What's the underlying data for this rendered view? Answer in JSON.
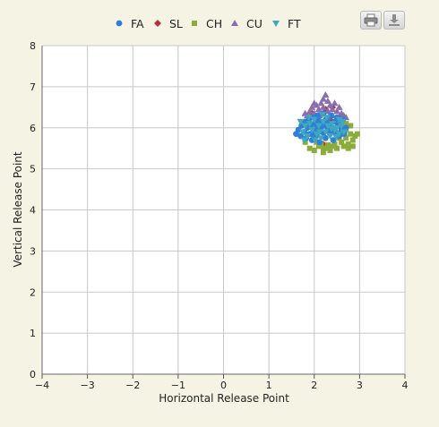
{
  "toolbar": {
    "print_icon": "print-icon",
    "export_icon": "download-icon"
  },
  "chart_data": {
    "type": "scatter",
    "xlabel": "Horizontal Release Point",
    "ylabel": "Vertical Release Point",
    "xlim": [
      -4,
      4
    ],
    "ylim": [
      0,
      8
    ],
    "xticks": [
      -4,
      -3,
      -2,
      -1,
      0,
      1,
      2,
      3,
      4
    ],
    "yticks": [
      0,
      1,
      2,
      3,
      4,
      5,
      6,
      7,
      8
    ],
    "xtick_labels": [
      "−4",
      "−3",
      "−2",
      "−1",
      "0",
      "1",
      "2",
      "3",
      "4"
    ],
    "ytick_labels": [
      "0",
      "1",
      "2",
      "3",
      "4",
      "5",
      "6",
      "7",
      "8"
    ],
    "grid": true,
    "legend_position": "top-center",
    "series": [
      {
        "name": "FA",
        "marker": "circle",
        "color": "#2f7ed8",
        "points": [
          [
            1.6,
            5.85
          ],
          [
            1.65,
            5.95
          ],
          [
            1.7,
            5.8
          ],
          [
            1.72,
            6.05
          ],
          [
            1.78,
            5.9
          ],
          [
            1.8,
            6.15
          ],
          [
            1.82,
            5.75
          ],
          [
            1.85,
            6.0
          ],
          [
            1.88,
            6.2
          ],
          [
            1.9,
            5.85
          ],
          [
            1.92,
            6.05
          ],
          [
            1.95,
            5.7
          ],
          [
            1.97,
            6.25
          ],
          [
            2.0,
            5.95
          ],
          [
            2.02,
            6.1
          ],
          [
            2.05,
            5.8
          ],
          [
            2.07,
            6.3
          ],
          [
            2.1,
            6.0
          ],
          [
            2.12,
            5.65
          ],
          [
            2.15,
            6.15
          ],
          [
            2.17,
            5.9
          ],
          [
            2.2,
            6.35
          ],
          [
            2.22,
            6.05
          ],
          [
            2.25,
            5.75
          ],
          [
            2.27,
            6.2
          ],
          [
            2.3,
            5.95
          ],
          [
            2.32,
            6.1
          ],
          [
            2.35,
            5.85
          ],
          [
            2.37,
            6.3
          ],
          [
            2.4,
            6.0
          ],
          [
            2.42,
            5.7
          ],
          [
            2.45,
            6.15
          ],
          [
            2.47,
            5.9
          ],
          [
            2.5,
            6.25
          ],
          [
            2.52,
            6.05
          ],
          [
            2.55,
            5.8
          ],
          [
            2.58,
            6.1
          ],
          [
            2.6,
            5.95
          ],
          [
            2.63,
            6.2
          ],
          [
            2.66,
            5.85
          ],
          [
            2.7,
            6.0
          ],
          [
            2.05,
            5.98
          ],
          [
            2.15,
            6.02
          ],
          [
            2.25,
            6.08
          ],
          [
            2.35,
            5.92
          ],
          [
            2.1,
            6.18
          ],
          [
            2.2,
            5.88
          ],
          [
            2.3,
            6.22
          ],
          [
            1.98,
            5.82
          ],
          [
            2.45,
            5.98
          ]
        ]
      },
      {
        "name": "SL",
        "marker": "diamond",
        "color": "#b5313a",
        "points": [
          [
            2.1,
            6.3
          ],
          [
            2.25,
            6.45
          ],
          [
            2.35,
            6.2
          ],
          [
            1.95,
            6.35
          ],
          [
            2.4,
            6.5
          ],
          [
            2.2,
            5.6
          ],
          [
            1.85,
            6.1
          ],
          [
            2.55,
            6.25
          ]
        ]
      },
      {
        "name": "CH",
        "marker": "square",
        "color": "#8bac3c",
        "points": [
          [
            1.9,
            5.5
          ],
          [
            2.0,
            5.45
          ],
          [
            2.1,
            5.55
          ],
          [
            2.2,
            5.4
          ],
          [
            2.25,
            5.5
          ],
          [
            2.35,
            5.45
          ],
          [
            2.45,
            5.6
          ],
          [
            2.5,
            5.5
          ],
          [
            2.6,
            5.65
          ],
          [
            2.65,
            5.55
          ],
          [
            2.7,
            5.75
          ],
          [
            2.75,
            5.6
          ],
          [
            2.8,
            5.85
          ],
          [
            2.85,
            5.7
          ],
          [
            2.9,
            5.8
          ],
          [
            2.95,
            5.85
          ],
          [
            2.75,
            5.5
          ],
          [
            2.85,
            5.55
          ],
          [
            2.7,
            5.95
          ],
          [
            2.8,
            6.05
          ],
          [
            2.6,
            5.85
          ],
          [
            2.55,
            5.75
          ],
          [
            2.15,
            5.6
          ],
          [
            2.05,
            5.65
          ],
          [
            2.4,
            5.55
          ],
          [
            2.65,
            6.0
          ],
          [
            1.8,
            5.65
          ],
          [
            2.3,
            5.58
          ],
          [
            2.7,
            6.1
          ],
          [
            2.2,
            5.5
          ]
        ]
      },
      {
        "name": "CU",
        "marker": "triangle",
        "color": "#8a6dae",
        "points": [
          [
            1.85,
            6.3
          ],
          [
            1.9,
            6.4
          ],
          [
            1.95,
            6.5
          ],
          [
            2.0,
            6.35
          ],
          [
            2.05,
            6.55
          ],
          [
            2.1,
            6.45
          ],
          [
            2.15,
            6.6
          ],
          [
            2.2,
            6.7
          ],
          [
            2.25,
            6.8
          ],
          [
            2.3,
            6.65
          ],
          [
            2.35,
            6.55
          ],
          [
            2.4,
            6.45
          ],
          [
            2.45,
            6.6
          ],
          [
            2.5,
            6.4
          ],
          [
            2.55,
            6.5
          ],
          [
            2.6,
            6.35
          ],
          [
            2.65,
            6.3
          ],
          [
            2.2,
            6.5
          ],
          [
            2.3,
            6.4
          ],
          [
            2.1,
            6.3
          ],
          [
            2.4,
            6.3
          ],
          [
            1.8,
            6.35
          ],
          [
            2.7,
            6.25
          ],
          [
            2.0,
            6.6
          ],
          [
            2.25,
            6.25
          ],
          [
            2.5,
            6.2
          ]
        ]
      },
      {
        "name": "FT",
        "marker": "triangle-down",
        "color": "#3fa7be",
        "points": [
          [
            1.75,
            5.9
          ],
          [
            1.8,
            6.05
          ],
          [
            1.85,
            5.8
          ],
          [
            1.9,
            6.1
          ],
          [
            1.95,
            5.95
          ],
          [
            2.0,
            6.2
          ],
          [
            2.05,
            5.85
          ],
          [
            2.1,
            6.05
          ],
          [
            2.15,
            5.75
          ],
          [
            2.2,
            6.15
          ],
          [
            2.25,
            5.9
          ],
          [
            2.3,
            6.05
          ],
          [
            2.35,
            5.8
          ],
          [
            2.4,
            6.1
          ],
          [
            2.45,
            5.95
          ],
          [
            2.5,
            6.0
          ],
          [
            2.55,
            5.85
          ],
          [
            2.6,
            6.05
          ],
          [
            2.65,
            5.9
          ],
          [
            1.7,
            6.15
          ],
          [
            1.78,
            5.7
          ],
          [
            2.02,
            5.7
          ],
          [
            2.28,
            6.25
          ],
          [
            2.48,
            5.78
          ],
          [
            2.62,
            6.15
          ],
          [
            1.88,
            6.25
          ],
          [
            2.12,
            5.9
          ],
          [
            2.38,
            5.98
          ],
          [
            2.18,
            6.32
          ],
          [
            2.55,
            6.2
          ]
        ]
      }
    ]
  }
}
